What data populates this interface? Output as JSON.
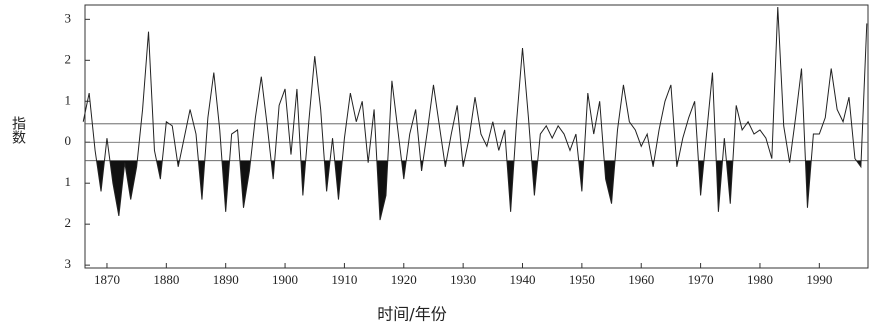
{
  "chart_data": {
    "type": "line",
    "x_label": "时间/年份",
    "y_label": "指数",
    "color": "#222222",
    "fill_color": "#111111",
    "reference_lines": [
      0.45,
      0,
      -0.45
    ],
    "fill_below": -0.45,
    "xlim": [
      1866.3,
      1998.2
    ],
    "ylim": [
      -3.07,
      3.35
    ],
    "xticks": [
      1870,
      1880,
      1890,
      1900,
      1910,
      1920,
      1930,
      1940,
      1950,
      1960,
      1970,
      1980,
      1990
    ],
    "yticks": [
      3,
      2,
      1,
      0,
      {
        "value": -1,
        "label": "1"
      },
      {
        "value": -2,
        "label": "2"
      },
      {
        "value": -3,
        "label": "3"
      }
    ],
    "x": [
      1866,
      1867,
      1868,
      1869,
      1870,
      1871,
      1872,
      1873,
      1874,
      1875,
      1876,
      1877,
      1878,
      1879,
      1880,
      1881,
      1882,
      1883,
      1884,
      1885,
      1886,
      1887,
      1888,
      1889,
      1890,
      1891,
      1892,
      1893,
      1894,
      1895,
      1896,
      1897,
      1898,
      1899,
      1900,
      1901,
      1902,
      1903,
      1904,
      1905,
      1906,
      1907,
      1908,
      1909,
      1910,
      1911,
      1912,
      1913,
      1914,
      1915,
      1916,
      1917,
      1918,
      1919,
      1920,
      1921,
      1922,
      1923,
      1924,
      1925,
      1926,
      1927,
      1928,
      1929,
      1930,
      1931,
      1932,
      1933,
      1934,
      1935,
      1936,
      1937,
      1938,
      1939,
      1940,
      1941,
      1942,
      1943,
      1944,
      1945,
      1946,
      1947,
      1948,
      1949,
      1950,
      1951,
      1952,
      1953,
      1954,
      1955,
      1956,
      1957,
      1958,
      1959,
      1960,
      1961,
      1962,
      1963,
      1964,
      1965,
      1966,
      1967,
      1968,
      1969,
      1970,
      1971,
      1972,
      1973,
      1974,
      1975,
      1976,
      1977,
      1978,
      1979,
      1980,
      1981,
      1982,
      1983,
      1984,
      1985,
      1986,
      1987,
      1988,
      1989,
      1990,
      1991,
      1992,
      1993,
      1994,
      1995,
      1996,
      1997,
      1998
    ],
    "values": [
      0.5,
      1.2,
      -0.2,
      -1.2,
      0.1,
      -1.0,
      -1.8,
      -0.5,
      -1.4,
      -0.6,
      0.8,
      2.7,
      -0.2,
      -0.9,
      0.5,
      0.4,
      -0.6,
      0.1,
      0.8,
      0.2,
      -1.4,
      0.6,
      1.7,
      0.3,
      -1.7,
      0.2,
      0.3,
      -1.6,
      -0.7,
      0.6,
      1.6,
      0.4,
      -0.9,
      0.9,
      1.3,
      -0.3,
      1.3,
      -1.3,
      0.5,
      2.1,
      0.8,
      -1.2,
      0.1,
      -1.4,
      0.1,
      1.2,
      0.5,
      1.0,
      -0.5,
      0.8,
      -1.9,
      -1.3,
      1.5,
      0.3,
      -0.9,
      0.2,
      0.8,
      -0.7,
      0.3,
      1.4,
      0.4,
      -0.6,
      0.2,
      0.9,
      -0.6,
      0.1,
      1.1,
      0.2,
      -0.1,
      0.5,
      -0.2,
      0.3,
      -1.7,
      0.5,
      2.3,
      0.6,
      -1.3,
      0.2,
      0.4,
      0.1,
      0.4,
      0.2,
      -0.2,
      0.2,
      -1.2,
      1.2,
      0.2,
      1.0,
      -0.9,
      -1.5,
      0.3,
      1.4,
      0.5,
      0.3,
      -0.1,
      0.2,
      -0.6,
      0.3,
      1.0,
      1.4,
      -0.6,
      0.1,
      0.6,
      1.0,
      -1.3,
      0.2,
      1.7,
      -1.7,
      0.1,
      -1.5,
      0.9,
      0.3,
      0.5,
      0.2,
      0.3,
      0.1,
      -0.4,
      3.3,
      0.4,
      -0.5,
      0.6,
      1.8,
      -1.6,
      0.2,
      0.2,
      0.6,
      1.8,
      0.8,
      0.5,
      1.1,
      -0.4,
      -0.6,
      2.9
    ]
  }
}
